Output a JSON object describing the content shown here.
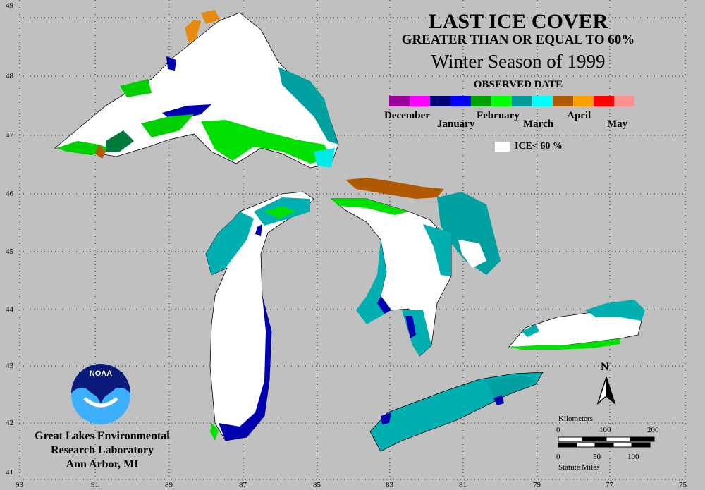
{
  "title": "LAST ICE COVER",
  "subtitle": "GREATER THAN OR EQUAL TO 60%",
  "season": "Winter Season of 1999",
  "legend": {
    "heading": "OBSERVED DATE",
    "months": [
      "December",
      "January",
      "February",
      "March",
      "April",
      "May"
    ],
    "colors": [
      "#9a009a",
      "#ff00ff",
      "#00007a",
      "#0000ff",
      "#00a000",
      "#00ff00",
      "#009a9a",
      "#00ffff",
      "#b05a00",
      "#ffa000",
      "#ff0000",
      "#ff9090"
    ],
    "ice_label": "ICE< 60 %"
  },
  "lon_labels": [
    "93",
    "91",
    "89",
    "87",
    "85",
    "83",
    "81",
    "79",
    "77",
    "75"
  ],
  "lat_labels": [
    "49",
    "48",
    "47",
    "46",
    "45",
    "44",
    "43",
    "42",
    "41"
  ],
  "scale": {
    "km_label": "Kilometers",
    "km_ticks": [
      "0",
      "100",
      "200"
    ],
    "mi_ticks": [
      "0",
      "50",
      "100"
    ],
    "mi_label": "Statute Miles"
  },
  "north_label": "N",
  "logo_text": "NOAA",
  "org": {
    "line1": "Great Lakes Environmental",
    "line2": "Research Laboratory",
    "line3": "Ann Arbor, MI"
  }
}
